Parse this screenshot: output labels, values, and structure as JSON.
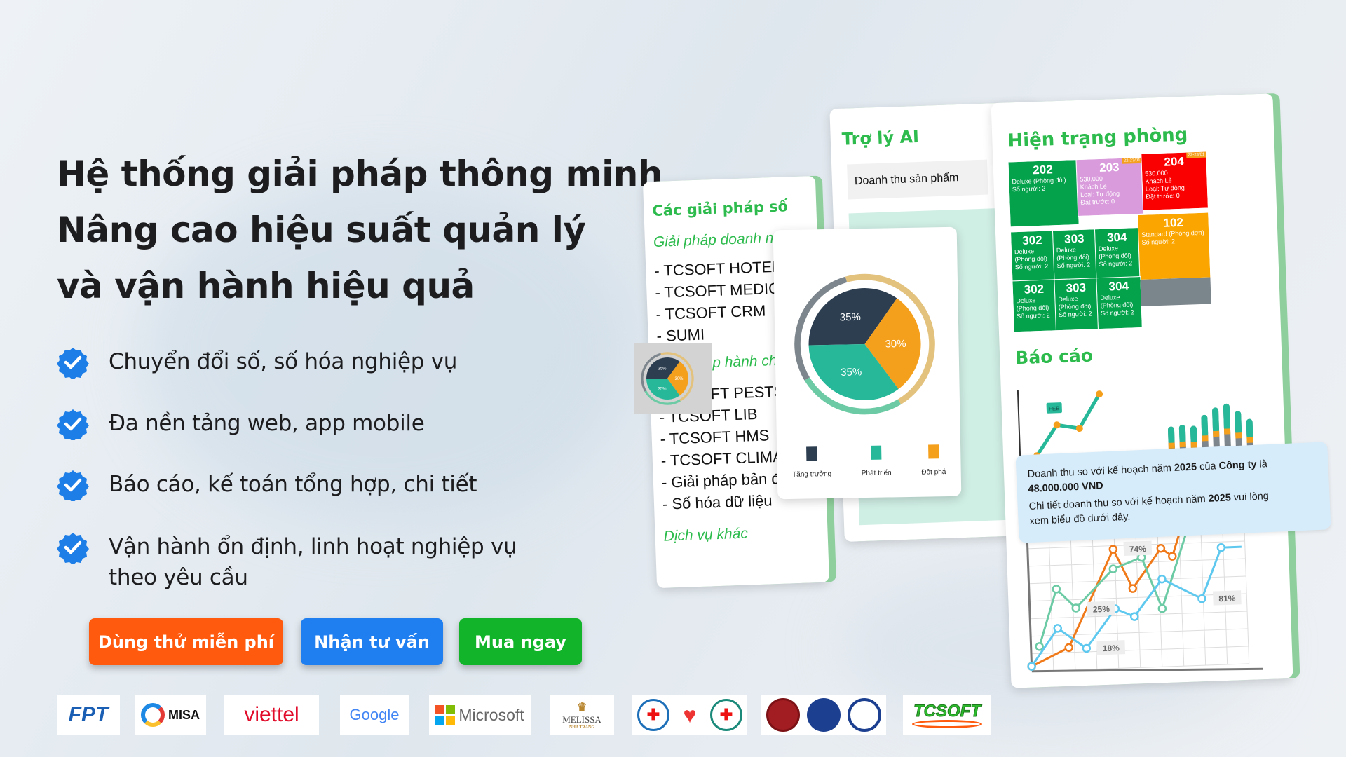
{
  "headline": [
    "Hệ thống giải pháp thông minh",
    "Nâng cao hiệu suất quản lý",
    "và vận hành hiệu quả"
  ],
  "features": [
    {
      "icon": "check-badge-icon",
      "text": "Chuyển đổi số, số hóa nghiệp vụ"
    },
    {
      "icon": "check-badge-icon",
      "text": "Đa nền tảng web, app mobile"
    },
    {
      "icon": "check-badge-icon",
      "text": "Báo cáo, kế toán tổng hợp, chi tiết"
    },
    {
      "icon": "check-badge-icon",
      "text": "Vận hành ổn định, linh hoạt nghiệp vụ",
      "text2": "theo yêu cầu"
    }
  ],
  "buttons": {
    "trial": "Dùng thử miễn phí",
    "consult": "Nhận tư vấn",
    "buy": "Mua ngay"
  },
  "colors": {
    "accent_green": "#2dbb4d",
    "trial": "#ff5a0d",
    "consult": "#1f7ef0",
    "buy": "#12b52a",
    "check": "#1e7ee8",
    "navy": "#2c3e50",
    "teal": "#26b899",
    "orange": "#f5a01d"
  },
  "logos": {
    "fpt": "FPT",
    "misa": "MISA",
    "viettel": "viettel",
    "google": "Google",
    "microsoft": "Microsoft",
    "melissa": "MELISSA",
    "melissa_sub": "NHA TRANG",
    "tcsoft": "TCSOFT"
  },
  "solutions_card": {
    "title": "Các giải pháp số",
    "section1": "Giải pháp doanh nghiệp",
    "items1": [
      "- TCSOFT HOTEL",
      "- TCSOFT MEDICAL",
      "- TCSOFT CRM",
      "- SUMI"
    ],
    "section2": "Giải pháp hành chính",
    "items2": [
      "- TCSOFT PESTS",
      "- TCSOFT LIB",
      "- TCSOFT HMS",
      "- TCSOFT CLIMATE",
      "- Giải pháp bản đồ",
      "- Số hóa dữ liệu"
    ],
    "section3": "Dịch vụ khác"
  },
  "ai_card": {
    "title": "Trợ lý AI",
    "input": "Doanh thu sản phẩm"
  },
  "pie": {
    "slices": [
      {
        "label": "Tăng trưởng",
        "value": 35,
        "text": "35%",
        "color": "#2c3e50"
      },
      {
        "label": "Đột phá",
        "value": 30,
        "text": "30%",
        "color": "#f5a01d"
      },
      {
        "label": "Phát triển",
        "value": 35,
        "text": "35%",
        "color": "#26b899"
      }
    ],
    "legend": [
      "Tăng trưởng",
      "Phát triển",
      "Đột phá"
    ]
  },
  "rooms_card": {
    "title": "Hiện trạng phòng",
    "rooms": [
      {
        "no": "202",
        "lines": [
          "Deluxe (Phòng đôi)",
          "Số người: 2"
        ],
        "color": "#05a24c"
      },
      {
        "no": "203",
        "lines": [
          "530.000",
          "Khách Lẻ",
          "Loại: Tự động",
          "Đặt trước: 0"
        ],
        "color": "#d99bdc",
        "tag": "22-23/01"
      },
      {
        "no": "204",
        "lines": [
          "530.000",
          "Khách Lẻ",
          "Loại: Tự động",
          "Đặt trước: 0"
        ],
        "color": "#fb0000",
        "tag": "22-23/01"
      },
      {
        "no": "302",
        "lines": [
          "Deluxe (Phòng đôi)",
          "Số người: 2"
        ],
        "color": "#05a24c"
      },
      {
        "no": "303",
        "lines": [
          "Deluxe (Phòng đôi)",
          "Số người: 2"
        ],
        "color": "#05a24c"
      },
      {
        "no": "304",
        "lines": [
          "Deluxe (Phòng đôi)",
          "Số người: 2"
        ],
        "color": "#05a24c"
      },
      {
        "no": "102",
        "lines": [
          "Standard (Phòng đơn)",
          "Số người: 2"
        ],
        "color": "#fba600"
      },
      {
        "no": "302",
        "lines": [
          "Deluxe (Phòng đôi)",
          "Số người: 2"
        ],
        "color": "#05a24c"
      },
      {
        "no": "303",
        "lines": [
          "Deluxe (Phòng đôi)",
          "Số người: 2"
        ],
        "color": "#05a24c"
      },
      {
        "no": "304",
        "lines": [
          "Deluxe (Phòng đôi)",
          "Số người: 2"
        ],
        "color": "#05a24c"
      }
    ],
    "report_title": "Báo cáo",
    "feb": "FEB",
    "chart_labels": [
      "74%",
      "25%",
      "18%",
      "81%"
    ]
  },
  "tooltip": {
    "l1a": "Doanh thu so với kế hoạch năm ",
    "l1b": "2025",
    "l1c": " của ",
    "l1d": "Công ty",
    "l1e": " là",
    "l2": "48.000.000 VND",
    "l3a": "Chi tiết doanh thu so với kế hoạch năm ",
    "l3b": "2025",
    "l3c": " vui lòng",
    "l4": "xem biểu đồ dưới đây."
  }
}
